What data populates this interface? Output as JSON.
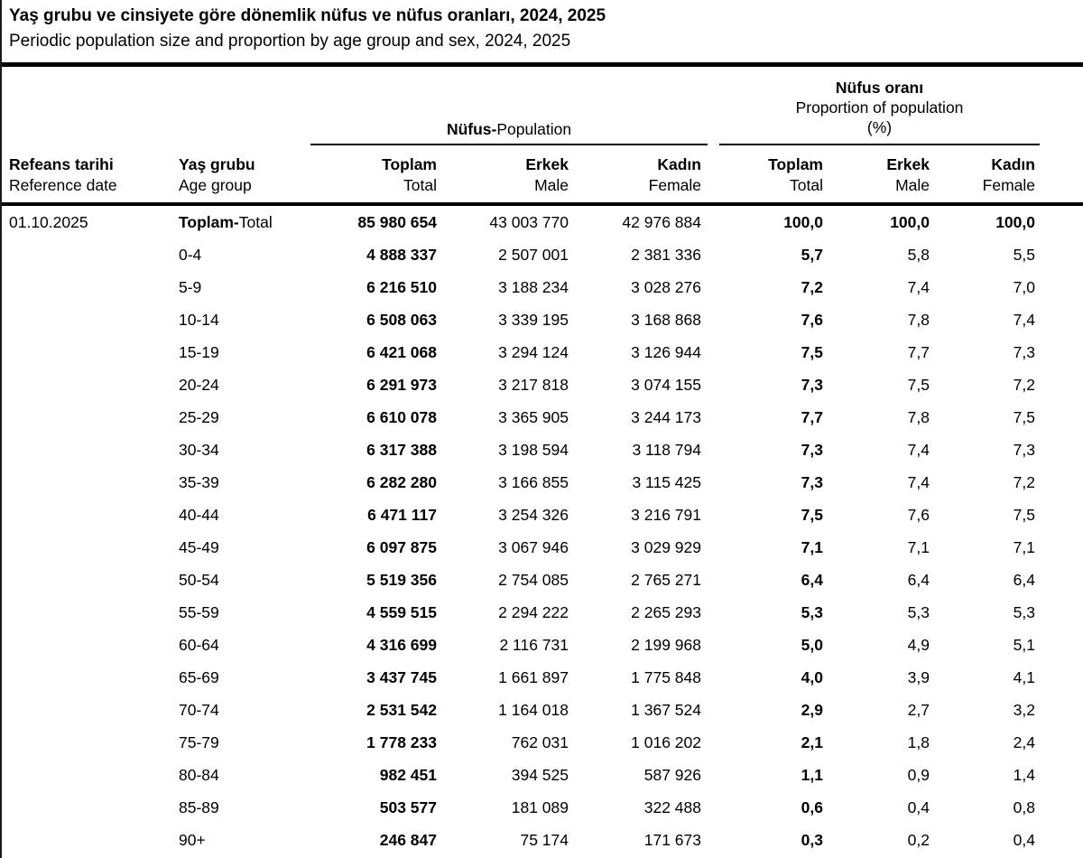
{
  "page": {
    "title": "Yaş grubu ve cinsiyete göre dönemlik nüfus ve nüfus oranları, 2024, 2025",
    "subtitle": "Periodic population size and proportion by age group and sex, 2024, 2025"
  },
  "table": {
    "groups": {
      "population": {
        "label_tr": "Nüfus-",
        "label_en": "Population"
      },
      "proportion": {
        "label_tr": "Nüfus oranı",
        "label_en": "Proportion of population",
        "unit": "(%)"
      }
    },
    "headers": {
      "ref_date_tr": "Refeans tarihi",
      "ref_date_en": "Reference date",
      "age_group_tr": "Yaş grubu",
      "age_group_en": "Age group",
      "total_tr": "Toplam",
      "total_en": "Total",
      "male_tr": "Erkek",
      "male_en": "Male",
      "female_tr": "Kadın",
      "female_en": "Female"
    },
    "rows": [
      {
        "ref_date": "01.10.2025",
        "age_bold": "Toplam-",
        "age": "Total",
        "pop_total": "85 980 654",
        "pop_male": "43 003 770",
        "pop_female": "42 976 884",
        "prop_total": "100,0",
        "prop_male": "100,0",
        "prop_female": "100,0",
        "is_total": true
      },
      {
        "ref_date": "",
        "age_bold": "",
        "age": "0-4",
        "pop_total": "4 888 337",
        "pop_male": "2 507 001",
        "pop_female": "2 381 336",
        "prop_total": "5,7",
        "prop_male": "5,8",
        "prop_female": "5,5",
        "is_total": false
      },
      {
        "ref_date": "",
        "age_bold": "",
        "age": "5-9",
        "pop_total": "6 216 510",
        "pop_male": "3 188 234",
        "pop_female": "3 028 276",
        "prop_total": "7,2",
        "prop_male": "7,4",
        "prop_female": "7,0",
        "is_total": false
      },
      {
        "ref_date": "",
        "age_bold": "",
        "age": "10-14",
        "pop_total": "6 508 063",
        "pop_male": "3 339 195",
        "pop_female": "3 168 868",
        "prop_total": "7,6",
        "prop_male": "7,8",
        "prop_female": "7,4",
        "is_total": false
      },
      {
        "ref_date": "",
        "age_bold": "",
        "age": "15-19",
        "pop_total": "6 421 068",
        "pop_male": "3 294 124",
        "pop_female": "3 126 944",
        "prop_total": "7,5",
        "prop_male": "7,7",
        "prop_female": "7,3",
        "is_total": false
      },
      {
        "ref_date": "",
        "age_bold": "",
        "age": "20-24",
        "pop_total": "6 291 973",
        "pop_male": "3 217 818",
        "pop_female": "3 074 155",
        "prop_total": "7,3",
        "prop_male": "7,5",
        "prop_female": "7,2",
        "is_total": false
      },
      {
        "ref_date": "",
        "age_bold": "",
        "age": "25-29",
        "pop_total": "6 610 078",
        "pop_male": "3 365 905",
        "pop_female": "3 244 173",
        "prop_total": "7,7",
        "prop_male": "7,8",
        "prop_female": "7,5",
        "is_total": false
      },
      {
        "ref_date": "",
        "age_bold": "",
        "age": "30-34",
        "pop_total": "6 317 388",
        "pop_male": "3 198 594",
        "pop_female": "3 118 794",
        "prop_total": "7,3",
        "prop_male": "7,4",
        "prop_female": "7,3",
        "is_total": false
      },
      {
        "ref_date": "",
        "age_bold": "",
        "age": "35-39",
        "pop_total": "6 282 280",
        "pop_male": "3 166 855",
        "pop_female": "3 115 425",
        "prop_total": "7,3",
        "prop_male": "7,4",
        "prop_female": "7,2",
        "is_total": false
      },
      {
        "ref_date": "",
        "age_bold": "",
        "age": "40-44",
        "pop_total": "6 471 117",
        "pop_male": "3 254 326",
        "pop_female": "3 216 791",
        "prop_total": "7,5",
        "prop_male": "7,6",
        "prop_female": "7,5",
        "is_total": false
      },
      {
        "ref_date": "",
        "age_bold": "",
        "age": "45-49",
        "pop_total": "6 097 875",
        "pop_male": "3 067 946",
        "pop_female": "3 029 929",
        "prop_total": "7,1",
        "prop_male": "7,1",
        "prop_female": "7,1",
        "is_total": false
      },
      {
        "ref_date": "",
        "age_bold": "",
        "age": "50-54",
        "pop_total": "5 519 356",
        "pop_male": "2 754 085",
        "pop_female": "2 765 271",
        "prop_total": "6,4",
        "prop_male": "6,4",
        "prop_female": "6,4",
        "is_total": false
      },
      {
        "ref_date": "",
        "age_bold": "",
        "age": "55-59",
        "pop_total": "4 559 515",
        "pop_male": "2 294 222",
        "pop_female": "2 265 293",
        "prop_total": "5,3",
        "prop_male": "5,3",
        "prop_female": "5,3",
        "is_total": false
      },
      {
        "ref_date": "",
        "age_bold": "",
        "age": "60-64",
        "pop_total": "4 316 699",
        "pop_male": "2 116 731",
        "pop_female": "2 199 968",
        "prop_total": "5,0",
        "prop_male": "4,9",
        "prop_female": "5,1",
        "is_total": false
      },
      {
        "ref_date": "",
        "age_bold": "",
        "age": "65-69",
        "pop_total": "3 437 745",
        "pop_male": "1 661 897",
        "pop_female": "1 775 848",
        "prop_total": "4,0",
        "prop_male": "3,9",
        "prop_female": "4,1",
        "is_total": false
      },
      {
        "ref_date": "",
        "age_bold": "",
        "age": "70-74",
        "pop_total": "2 531 542",
        "pop_male": "1 164 018",
        "pop_female": "1 367 524",
        "prop_total": "2,9",
        "prop_male": "2,7",
        "prop_female": "3,2",
        "is_total": false
      },
      {
        "ref_date": "",
        "age_bold": "",
        "age": "75-79",
        "pop_total": "1 778 233",
        "pop_male": "762 031",
        "pop_female": "1 016 202",
        "prop_total": "2,1",
        "prop_male": "1,8",
        "prop_female": "2,4",
        "is_total": false
      },
      {
        "ref_date": "",
        "age_bold": "",
        "age": "80-84",
        "pop_total": "982 451",
        "pop_male": "394 525",
        "pop_female": "587 926",
        "prop_total": "1,1",
        "prop_male": "0,9",
        "prop_female": "1,4",
        "is_total": false
      },
      {
        "ref_date": "",
        "age_bold": "",
        "age": "85-89",
        "pop_total": "503 577",
        "pop_male": "181 089",
        "pop_female": "322 488",
        "prop_total": "0,6",
        "prop_male": "0,4",
        "prop_female": "0,8",
        "is_total": false
      },
      {
        "ref_date": "",
        "age_bold": "",
        "age": "90+",
        "pop_total": "246 847",
        "pop_male": "75 174",
        "pop_female": "171 673",
        "prop_total": "0,3",
        "prop_male": "0,2",
        "prop_female": "0,4",
        "is_total": false
      }
    ]
  }
}
